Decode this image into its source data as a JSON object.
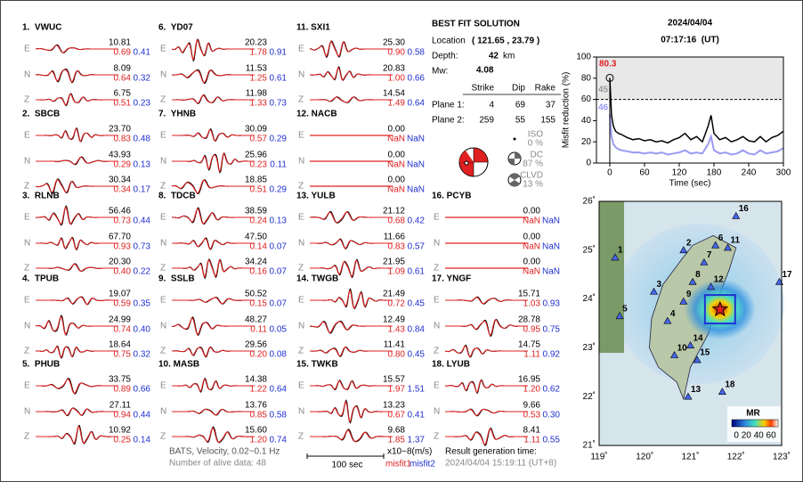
{
  "stations": [
    {
      "label": "1.  VWUC",
      "rows": [
        [
          "10.81",
          "0.69",
          "0.41"
        ],
        [
          "8.09",
          "0.64",
          "0.32"
        ],
        [
          "6.75",
          "0.51",
          "0.23"
        ]
      ]
    },
    {
      "label": "2.  SBCB",
      "rows": [
        [
          "23.70",
          "0.83",
          "0.48"
        ],
        [
          "43.93",
          "0.29",
          "0.13"
        ],
        [
          "30.34",
          "0.34",
          "0.17"
        ]
      ]
    },
    {
      "label": "3.  RLNB",
      "rows": [
        [
          "56.46",
          "0.73",
          "0.44"
        ],
        [
          "67.70",
          "0.93",
          "0.73"
        ],
        [
          "20.30",
          "0.40",
          "0.22"
        ]
      ]
    },
    {
      "label": "4.  TPUB",
      "rows": [
        [
          "19.07",
          "0.59",
          "0.35"
        ],
        [
          "24.99",
          "0.74",
          "0.40"
        ],
        [
          "18.64",
          "0.75",
          "0.32"
        ]
      ]
    },
    {
      "label": "5.  PHUB",
      "rows": [
        [
          "33.75",
          "0.89",
          "0.66"
        ],
        [
          "27.11",
          "0.94",
          "0.44"
        ],
        [
          "10.92",
          "0.25",
          "0.14"
        ]
      ]
    },
    {
      "label": "6.  YD07",
      "rows": [
        [
          "20.23",
          "1.78",
          "0.91"
        ],
        [
          "11.53",
          "1.25",
          "0.61"
        ],
        [
          "11.98",
          "1.33",
          "0.73"
        ]
      ]
    },
    {
      "label": "7.  YHNB",
      "rows": [
        [
          "30.09",
          "0.57",
          "0.29"
        ],
        [
          "25.96",
          "0.23",
          "0.11"
        ],
        [
          "18.85",
          "0.51",
          "0.29"
        ]
      ]
    },
    {
      "label": "8.  TDCB",
      "rows": [
        [
          "38.59",
          "0.24",
          "0.13"
        ],
        [
          "47.50",
          "0.14",
          "0.07"
        ],
        [
          "34.24",
          "0.16",
          "0.07"
        ]
      ]
    },
    {
      "label": "9.  SSLB",
      "rows": [
        [
          "50.52",
          "0.15",
          "0.07"
        ],
        [
          "48.27",
          "0.11",
          "0.05"
        ],
        [
          "29.56",
          "0.20",
          "0.08"
        ]
      ]
    },
    {
      "label": "10. MASB",
      "rows": [
        [
          "14.38",
          "1.22",
          "0.64"
        ],
        [
          "13.76",
          "0.85",
          "0.58"
        ],
        [
          "15.60",
          "1.20",
          "0.74"
        ]
      ]
    },
    {
      "label": "11. SXI1",
      "rows": [
        [
          "25.30",
          "0.90",
          "0.58"
        ],
        [
          "20.83",
          "1.00",
          "0.66"
        ],
        [
          "14.54",
          "1.49",
          "0.64"
        ]
      ]
    },
    {
      "label": "12. NACB",
      "rows": [
        [
          "0.00",
          "NaN",
          "NaN"
        ],
        [
          "0.00",
          "NaN",
          "NaN"
        ],
        [
          "0.00",
          "NaN",
          "NaN"
        ]
      ]
    },
    {
      "label": "13. YULB",
      "rows": [
        [
          "21.12",
          "0.68",
          "0.42"
        ],
        [
          "11.66",
          "0.83",
          "0.57"
        ],
        [
          "21.95",
          "1.09",
          "0.61"
        ]
      ]
    },
    {
      "label": "14. TWGB",
      "rows": [
        [
          "21.49",
          "0.72",
          "0.45"
        ],
        [
          "12.49",
          "1.43",
          "0.84"
        ],
        [
          "11.41",
          "0.80",
          "0.45"
        ]
      ]
    },
    {
      "label": "15. TWKB",
      "rows": [
        [
          "15.57",
          "1.97",
          "1.51"
        ],
        [
          "13.23",
          "0.67",
          "0.41"
        ],
        [
          "9.68",
          "1.85",
          "1.37"
        ]
      ]
    },
    {
      "label": "16. PCYB",
      "rows": [
        [
          "0.00",
          "NaN",
          "NaN"
        ],
        [
          "0.00",
          "NaN",
          "NaN"
        ],
        [
          "0.00",
          "NaN",
          "NaN"
        ]
      ]
    },
    {
      "label": "17. YNGF",
      "rows": [
        [
          "15.71",
          "1.03",
          "0.93"
        ],
        [
          "28.78",
          "0.95",
          "0.75"
        ],
        [
          "14.75",
          "1.11",
          "0.92"
        ]
      ]
    },
    {
      "label": "18. LYUB",
      "rows": [
        [
          "16.95",
          "1.20",
          "0.62"
        ],
        [
          "9.66",
          "0.53",
          "0.30"
        ],
        [
          "8.41",
          "1.11",
          "0.55"
        ]
      ]
    }
  ],
  "components": [
    "E",
    "N",
    "Z"
  ],
  "event": {
    "date": "2024/04/04",
    "time": "07:17:16  (UT)"
  },
  "solution": {
    "title": "BEST FIT SOLUTION",
    "location_label": "Location",
    "location": "( 121.65 , 23.79 )",
    "depth_label": "Depth:",
    "depth": "42",
    "depth_unit": "km",
    "mw_label": "Mw:",
    "mw": "4.08",
    "headers": [
      "Strike",
      "Dip",
      "Rake"
    ],
    "planes": [
      {
        "label": "Plane 1:",
        "values": [
          "4",
          "69",
          "37"
        ]
      },
      {
        "label": "Plane 2:",
        "values": [
          "259",
          "55",
          "155"
        ]
      }
    ],
    "parts": [
      {
        "name": "ISO",
        "percent": "0 %"
      },
      {
        "name": "DC",
        "percent": "87 %"
      },
      {
        "name": "CLVD",
        "percent": "13 %"
      }
    ]
  },
  "footer": {
    "bats": "BATS, Velocity, 0.02~0.1 Hz",
    "alive": "Number of alive data: 48",
    "scale": "100 sec",
    "units": "x10−8(m/s)",
    "misfit1": "misfit1",
    "misfit2": "misfit2",
    "generated_label": "Result generation time:",
    "generated": "2024/04/04 15:19:11 (UT+8)"
  },
  "misfit_chart": {
    "type": "line",
    "ylabel": "Misfit reduction (%)",
    "xlabel": "Time (sec)",
    "xlim": [
      -23,
      300
    ],
    "ylim": [
      0,
      100
    ],
    "xticks": [
      0,
      60,
      120,
      180,
      240,
      300
    ],
    "yticks": [
      0,
      20,
      40,
      60,
      80,
      100
    ],
    "reference_line": 60,
    "x": [
      0,
      3,
      6,
      10,
      15,
      20,
      30,
      40,
      50,
      60,
      70,
      80,
      90,
      100,
      110,
      120,
      130,
      140,
      150,
      160,
      170,
      175,
      180,
      190,
      200,
      210,
      220,
      230,
      240,
      250,
      260,
      270,
      280,
      290,
      300
    ],
    "series": [
      {
        "color": "#000000",
        "values": [
          80.3,
          45,
          35,
          30,
          28,
          27,
          24,
          22,
          23,
          21,
          22,
          20,
          21,
          19,
          22,
          24,
          28,
          22,
          25,
          20,
          35,
          45,
          28,
          22,
          24,
          20,
          22,
          25,
          21,
          20,
          25,
          20,
          24,
          26,
          30
        ]
      },
      {
        "color": "#9a9af5",
        "values": [
          46,
          25,
          18,
          15,
          13,
          12,
          11,
          10,
          10,
          9,
          10,
          9,
          10,
          8,
          9,
          10,
          12,
          9,
          10,
          9,
          18,
          25,
          12,
          9,
          10,
          8,
          9,
          12,
          9,
          8,
          12,
          9,
          10,
          11,
          14
        ]
      }
    ],
    "annotations": [
      {
        "text": "80.3",
        "color": "#e02020"
      },
      {
        "text": "45",
        "color": "#999999"
      },
      {
        "text": "46",
        "color": "#9a9af5"
      }
    ]
  },
  "map": {
    "lon_labels": [
      "119˚",
      "120˚",
      "121˚",
      "122˚",
      "123˚"
    ],
    "lat_labels": [
      "26˚",
      "25˚",
      "24˚",
      "23˚",
      "22˚",
      "21˚"
    ],
    "colorbar_title": "MR",
    "colorbar_labels": "0 20 40 60",
    "station_labels": [
      "1",
      "2",
      "3",
      "4",
      "5",
      "6",
      "7",
      "8",
      "9",
      "10",
      "11",
      "12",
      "13",
      "14",
      "15",
      "16",
      "17",
      "18"
    ]
  }
}
